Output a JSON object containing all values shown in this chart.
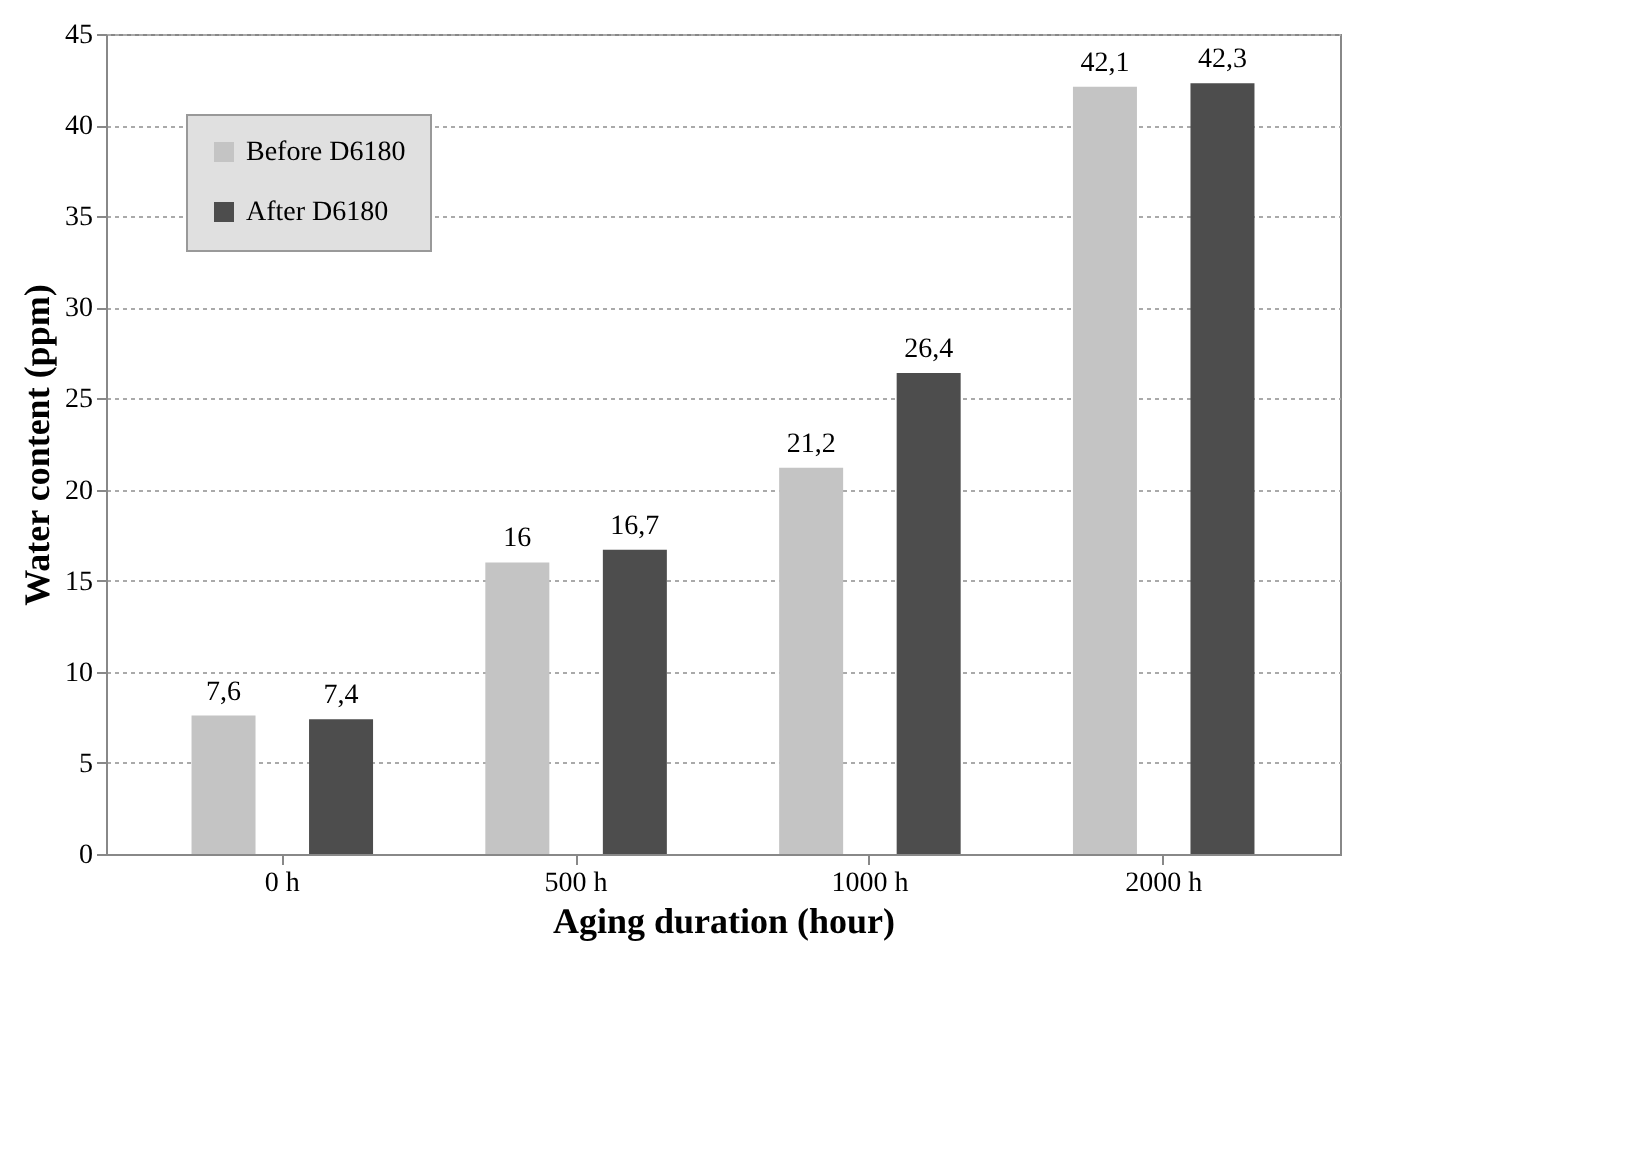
{
  "chart_data": {
    "type": "bar",
    "xlabel": "Aging duration (hour)",
    "ylabel": "Water content (ppm)",
    "categories": [
      "0 h",
      "500 h",
      "1000 h",
      "2000 h"
    ],
    "series": [
      {
        "name": "Before D6180",
        "color": "#c4c4c4",
        "values": [
          7.6,
          16,
          21.2,
          42.1
        ],
        "value_labels": [
          "7,6",
          "16",
          "21,2",
          "42,1"
        ]
      },
      {
        "name": "After D6180",
        "color": "#4d4d4d",
        "values": [
          7.4,
          16.7,
          26.4,
          42.3
        ],
        "value_labels": [
          "7,4",
          "16,7",
          "26,4",
          "42,3"
        ]
      }
    ],
    "ylim": [
      0,
      45
    ],
    "yticks": [
      0,
      5,
      10,
      15,
      20,
      25,
      30,
      35,
      40,
      45
    ],
    "grid": "y",
    "legend": "top left"
  }
}
